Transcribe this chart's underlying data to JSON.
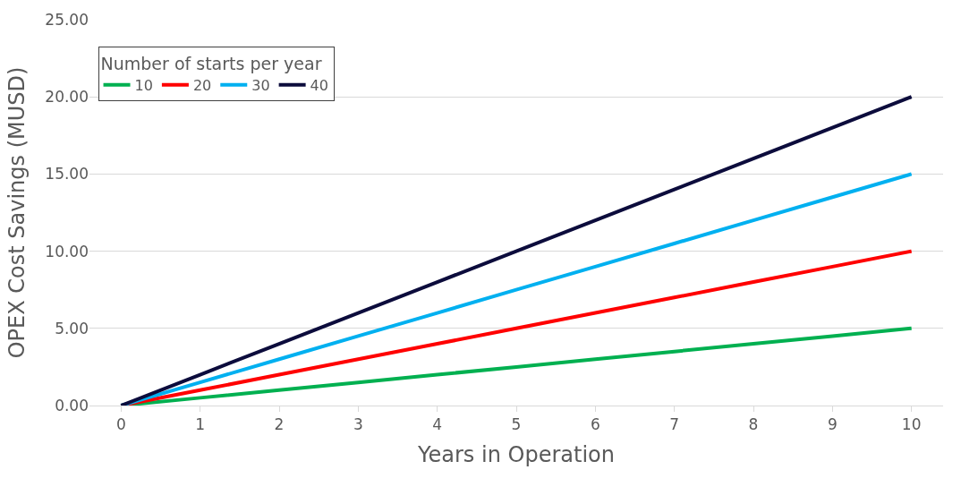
{
  "chart_data": {
    "type": "line",
    "xlabel": "Years in Operation",
    "ylabel": "OPEX Cost Savings (MUSD)",
    "legend_title": "Number of starts per year",
    "categories": [
      "0",
      "1",
      "2",
      "3",
      "4",
      "5",
      "6",
      "7",
      "8",
      "9",
      "10"
    ],
    "series": [
      {
        "name": "10",
        "color": "#00b050",
        "values": [
          0,
          0.5,
          1,
          1.5,
          2,
          2.5,
          3,
          3.5,
          4,
          4.5,
          5
        ]
      },
      {
        "name": "20",
        "color": "#ff0000",
        "values": [
          0,
          1,
          2,
          3,
          4,
          5,
          6,
          7,
          8,
          9,
          10
        ]
      },
      {
        "name": "30",
        "color": "#00b0f0",
        "values": [
          0,
          1.5,
          3,
          4.5,
          6,
          7.5,
          9,
          10.5,
          12,
          13.5,
          15
        ]
      },
      {
        "name": "40",
        "color": "#0c0c3c",
        "values": [
          0,
          2,
          4,
          6,
          8,
          10,
          12,
          14,
          16,
          18,
          20
        ]
      }
    ],
    "ylim": [
      0,
      25
    ],
    "yticks": [
      {
        "value": 0,
        "label": "0.00"
      },
      {
        "value": 5,
        "label": "5.00"
      },
      {
        "value": 10,
        "label": "10.00"
      },
      {
        "value": 15,
        "label": "15.00"
      },
      {
        "value": 20,
        "label": "20.00"
      },
      {
        "value": 25,
        "label": "25.00"
      }
    ],
    "grid": "y",
    "legend": "top left",
    "marker": "none",
    "line_style": "solid"
  }
}
